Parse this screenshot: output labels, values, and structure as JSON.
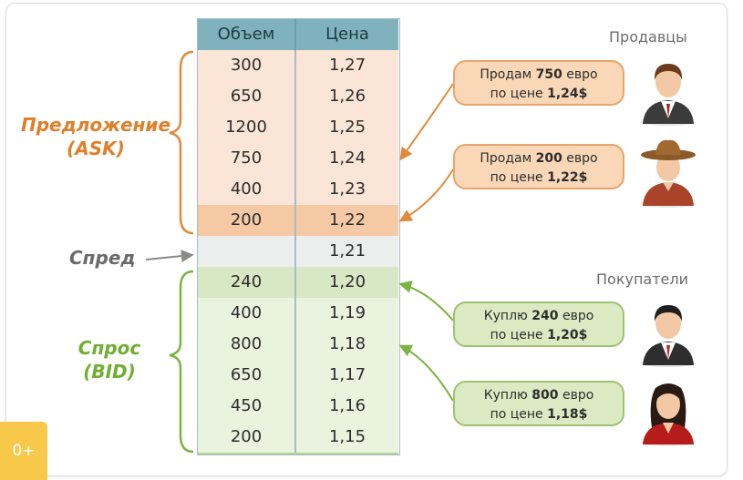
{
  "table": {
    "headers": {
      "volume": "Объем",
      "price": "Цена"
    },
    "ask_rows": [
      {
        "volume": "300",
        "price": "1,27"
      },
      {
        "volume": "650",
        "price": "1,26"
      },
      {
        "volume": "1200",
        "price": "1,25"
      },
      {
        "volume": "750",
        "price": "1,24"
      },
      {
        "volume": "400",
        "price": "1,23"
      },
      {
        "volume": "200",
        "price": "1,22"
      }
    ],
    "spread_row": {
      "volume": "",
      "price": "1,21"
    },
    "bid_rows": [
      {
        "volume": "240",
        "price": "1,20"
      },
      {
        "volume": "400",
        "price": "1,19"
      },
      {
        "volume": "800",
        "price": "1,18"
      },
      {
        "volume": "650",
        "price": "1,17"
      },
      {
        "volume": "450",
        "price": "1,16"
      },
      {
        "volume": "200",
        "price": "1,15"
      }
    ]
  },
  "labels": {
    "ask_line1": "Предложение",
    "ask_line2": "(ASK)",
    "spread": "Спред",
    "bid_line1": "Спрос",
    "bid_line2": "(BID)"
  },
  "groups": {
    "sellers": "Продавцы",
    "buyers": "Покупатели"
  },
  "bubbles": {
    "seller1": {
      "pre": "Продам ",
      "amount": "750",
      "post": " евро",
      "line2_pre": "по цене ",
      "price": "1,24$"
    },
    "seller2": {
      "pre": "Продам ",
      "amount": "200",
      "post": " евро",
      "line2_pre": "по цене ",
      "price": "1,22$"
    },
    "buyer1": {
      "pre": "Куплю ",
      "amount": "240",
      "post": " евро",
      "line2_pre": "по цене ",
      "price": "1,20$"
    },
    "buyer2": {
      "pre": "Куплю ",
      "amount": "800",
      "post": " евро",
      "line2_pre": "по цене ",
      "price": "1,18$"
    }
  },
  "badge": {
    "label": "0+"
  },
  "colors": {
    "ask_accent": "#e07f2a",
    "bid_accent": "#6fae33",
    "header_bg": "#7fb2bd",
    "spread_arrow": "#8a8a8a"
  },
  "icons": {
    "seller1": "businessman-avatar-icon",
    "seller2": "cowboy-avatar-icon",
    "buyer1": "businessman-avatar-icon",
    "buyer2": "businesswoman-avatar-icon"
  }
}
